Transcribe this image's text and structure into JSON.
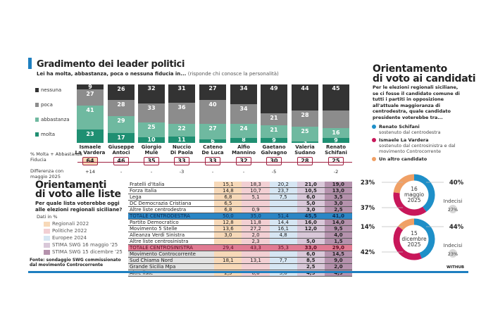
{
  "leaders": {
    "title": "Gradimento dei leader politici",
    "question": "Lei ha molta, abbastanza, poca o nessuna fiducia in...",
    "note": "(risponde chi conosce la personalità)",
    "legend": [
      {
        "label": "nessuna",
        "color": "#333333"
      },
      {
        "label": "poca",
        "color": "#8c8c8c"
      },
      {
        "label": "abbastanza",
        "color": "#6fb9a0"
      },
      {
        "label": "molta",
        "color": "#1f8f72"
      }
    ],
    "row_label_fiducia": "% Molta + Abbastanza Fiducia",
    "row_label_diff": "Differenza con maggio 2025"
  },
  "chart_data": [
    {
      "type": "bar",
      "stacked": true,
      "title": "Gradimento dei leader politici",
      "categories": [
        "Ismaele La Vardera",
        "Giuseppe Antoci",
        "Giorgio Mulè",
        "Nuccio Di Paola",
        "Cateno De Luca",
        "Alfio Mannino",
        "Gaetano Galvagno",
        "Valeria Sudano",
        "Renato Schifani"
      ],
      "series": [
        {
          "name": "molta",
          "values": [
            23,
            17,
            10,
            11,
            6,
            8,
            9,
            3,
            9
          ]
        },
        {
          "name": "abbastanza",
          "values": [
            41,
            29,
            25,
            22,
            27,
            24,
            21,
            25,
            16
          ]
        },
        {
          "name": "poca",
          "values": [
            27,
            28,
            33,
            36,
            40,
            34,
            21,
            28,
            null
          ]
        },
        {
          "name": "nessuna",
          "values": [
            9,
            26,
            32,
            31,
            27,
            34,
            49,
            44,
            45
          ]
        }
      ],
      "fiducia": [
        "64",
        "46",
        "35",
        "33",
        "33",
        "32",
        "30",
        "28",
        "25"
      ],
      "differenza": [
        "+14",
        "-",
        "-",
        "-3",
        "-",
        "-",
        "-5",
        "",
        "-2"
      ],
      "ylim": [
        0,
        100
      ]
    },
    {
      "type": "table",
      "title": "Orientamenti di voto alle liste",
      "columns": [
        "Regionali 2022",
        "Politiche 2022",
        "Europee 2024",
        "STIMA SWG 16 maggio '25",
        "STIMA SWG 15 dicembre '25"
      ],
      "rows": [
        {
          "name": "Fratelli d'Italia",
          "v": [
            "15,1",
            "18,3",
            "20,2",
            "21,0",
            "19,0"
          ]
        },
        {
          "name": "Forza Italia",
          "v": [
            "14,8",
            "10,7",
            "23,7",
            "10,5",
            "13,0"
          ]
        },
        {
          "name": "Lega",
          "v": [
            "6,8",
            "5,1",
            "7,5",
            "6,0",
            "3,5"
          ]
        },
        {
          "name": "DC Democrazia Cristiana",
          "v": [
            "6,5",
            "",
            "",
            "5,0",
            "3,0"
          ]
        },
        {
          "name": "Altre liste centrodestra",
          "v": [
            "6,8",
            "0,9",
            "",
            "3,0",
            "2,5"
          ]
        },
        {
          "name": "TOTALE CENTRODESTRA",
          "v": [
            "50,0",
            "35,0",
            "51,4",
            "45,5",
            "41,0"
          ],
          "total": "cdx"
        },
        {
          "name": "Partito Democratico",
          "v": [
            "12,8",
            "11,8",
            "14,4",
            "16,0",
            "14,0"
          ]
        },
        {
          "name": "Movimento 5 Stelle",
          "v": [
            "13,6",
            "27,2",
            "16,1",
            "12,0",
            "9,5"
          ]
        },
        {
          "name": "Alleanza Verdi Sinistra",
          "v": [
            "3,0",
            "2,0",
            "4,8",
            "",
            "4,0"
          ]
        },
        {
          "name": "Altre liste centrosinistra",
          "v": [
            "",
            "2,3",
            "",
            "5,0",
            "1,5"
          ]
        },
        {
          "name": "TOTALE CENTROSINISTRA",
          "v": [
            "29,4",
            "43,3",
            "35,3",
            "33,0",
            "29,0"
          ],
          "total": "csx"
        },
        {
          "name": "Movimento Controcorrente",
          "v": [
            "",
            "",
            "",
            "6,0",
            "14,5"
          ]
        },
        {
          "name": "Sud Chiama Nord",
          "v": [
            "18,1",
            "13,1",
            "7,7",
            "8,5",
            "9,0"
          ]
        },
        {
          "name": "Grande Sicilia Mpa",
          "v": [
            "",
            "",
            "",
            "2,5",
            "2,0"
          ]
        },
        {
          "name": "Altre liste",
          "v": [
            "2,5",
            "8,6",
            "5,6",
            "4,5",
            "4,5"
          ]
        }
      ]
    },
    {
      "type": "pie",
      "donut": true,
      "title": "16 maggio 2025",
      "labels": [
        "Renato Schifani",
        "Ismaele La Vardera",
        "Un altro candidato"
      ],
      "values": [
        40,
        37,
        23
      ],
      "indecisi": "27%"
    },
    {
      "type": "pie",
      "donut": true,
      "title": "15 dicembre 2025",
      "labels": [
        "Renato Schifani",
        "Ismaele La Vardera",
        "Un altro candidato"
      ],
      "values": [
        44,
        42,
        14
      ],
      "indecisi": "23%"
    }
  ],
  "liste": {
    "title1": "Orientamenti",
    "title2": "di voto alle liste",
    "question": "Per quale lista voterebbe oggi alle elezioni regionali siciliane?",
    "unit": "Dati in %",
    "legend_colors": [
      "#f7d9b8",
      "#f2cfd3",
      "#d6e6f3",
      "#d9c8d9",
      "#b592ad"
    ],
    "source": "Fonte: sondaggio SWG commissionato dal movimento Controcorrente"
  },
  "cand": {
    "title1": "Orientamento",
    "title2": "di voto ai candidati",
    "question": "Per le elezioni regionali siciliane, se ci fosse il candidato comune di tutti i partiti in opposizione all'attuale maggioranza di centrodestra, quale candidato presidente voterebbe tra...",
    "legend": [
      {
        "name": "Renato Schifani",
        "desc": "sostenuto dal centrodestra",
        "color": "#1e8fc8"
      },
      {
        "name": "Ismaele La Vardera",
        "desc": "sostenuto dal centrosinistra e dal movimento Controcorrente",
        "color": "#c8175a"
      },
      {
        "name": "Un altro candidato",
        "desc": "",
        "color": "#f0a065"
      }
    ],
    "d1": {
      "l1": "16",
      "l2": "maggio",
      "l3": "2025",
      "p_altro": "23%",
      "p_schifani": "40%",
      "p_lavardera": "37%",
      "ind_label": "Indecisi",
      "ind": "27%"
    },
    "d2": {
      "l1": "15",
      "l2": "dicembre",
      "l3": "2025",
      "p_altro": "14%",
      "p_schifani": "44%",
      "p_lavardera": "42%",
      "ind_label": "Indecisi",
      "ind": "23%"
    },
    "brand": "WITHUB"
  }
}
